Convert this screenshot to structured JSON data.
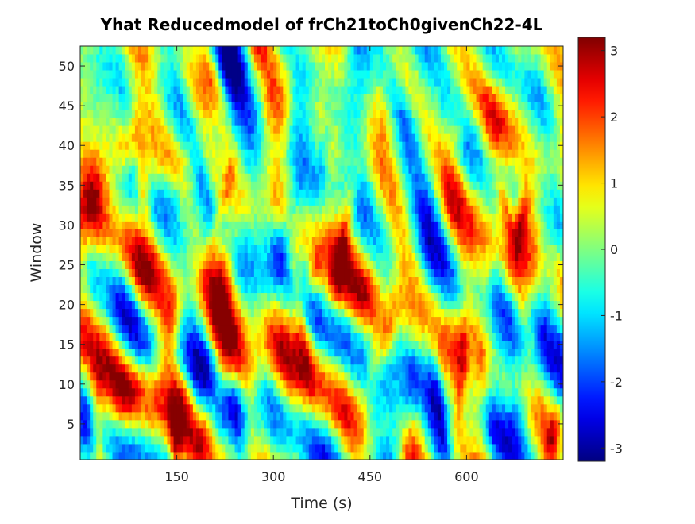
{
  "chart_data": {
    "type": "heatmap",
    "title": "Yhat Reducedmodel of frCh21toCh0givenCh22-4L",
    "xlabel": "Time (s)",
    "ylabel": "Window",
    "xlim": [
      0,
      750
    ],
    "ylim": [
      0.5,
      52.5
    ],
    "xticks": [
      150,
      300,
      450,
      600
    ],
    "xtick_labels": [
      "150",
      "300",
      "450",
      "600"
    ],
    "yticks": [
      5,
      10,
      15,
      20,
      25,
      30,
      35,
      40,
      45,
      50
    ],
    "ytick_labels": [
      "5",
      "10",
      "15",
      "20",
      "25",
      "30",
      "35",
      "40",
      "45",
      "50"
    ],
    "colormap": "jet",
    "clim": [
      -3.2,
      3.2
    ],
    "colorbar_ticks": [
      3,
      2,
      1,
      0,
      -1,
      -2,
      -3
    ],
    "colorbar_tick_labels": [
      "3",
      "2",
      "1",
      "0",
      "-1",
      "-2",
      "-3"
    ],
    "n_windows": 52,
    "n_time_bins": 150,
    "grid": false,
    "legend": "none"
  }
}
